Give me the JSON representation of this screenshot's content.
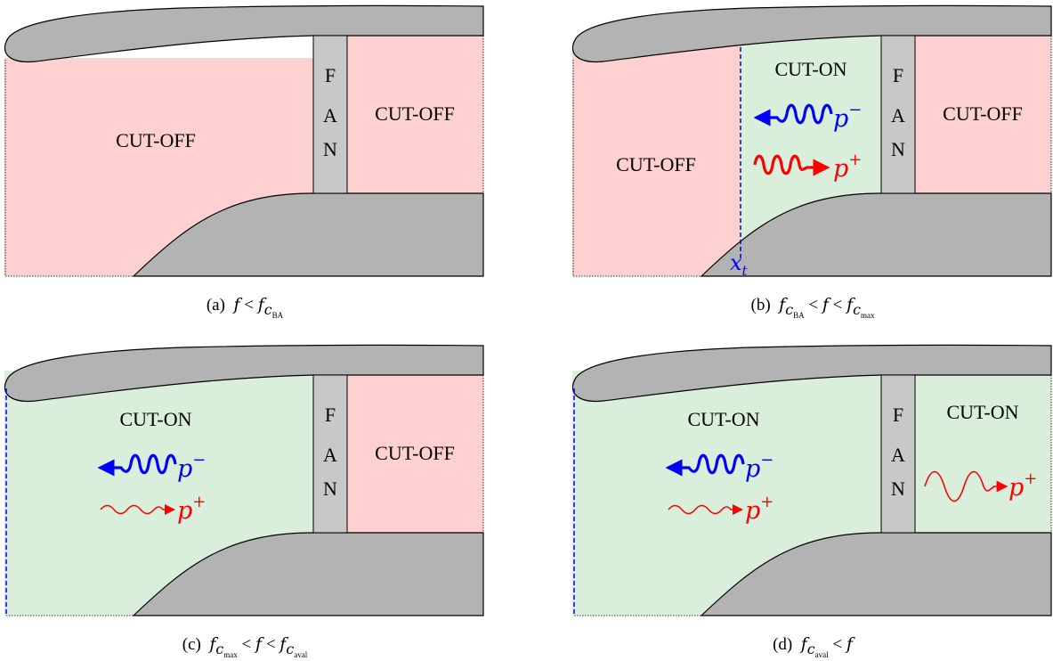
{
  "colors": {
    "cut_off": "#ffd0d0",
    "cut_on": "#d9eedb",
    "nacelle": "#b3b3b3",
    "fan": "#c8c8c8",
    "backward_wave": "#0000ff",
    "forward_wave": "#ff0000",
    "transition": "#0000ff"
  },
  "labels": {
    "cut_off": "CUT-OFF",
    "cut_on": "CUT-ON",
    "fan_letters": [
      "F",
      "A",
      "N"
    ],
    "p_minus": "p",
    "minus_sign": "−",
    "p_plus": "p",
    "plus_sign": "+",
    "xt_symbol": "x",
    "xt_subscript": "t"
  },
  "panels": [
    {
      "id": "a",
      "caption": {
        "prefix": "(a)",
        "parts": [
          {
            "var": "f",
            "op": "<"
          },
          {
            "var": "f",
            "sub": "c",
            "subsub": "BA"
          }
        ]
      },
      "inlet_state": "cut-off",
      "transition_marker": "none",
      "exhaust_state": "cut-off",
      "backward_wave": "none",
      "forward_wave": "none"
    },
    {
      "id": "b",
      "caption": {
        "prefix": "(b)",
        "parts": [
          {
            "var": "f",
            "sub": "c",
            "subsub": "BA",
            "op": "<"
          },
          {
            "var": "f",
            "op": "<"
          },
          {
            "var": "f",
            "sub": "c",
            "subsub": "max"
          }
        ]
      },
      "inlet_state": "partial: cut-off upstream, cut-on near fan",
      "transition_marker": "x_t",
      "exhaust_state": "cut-off",
      "backward_wave": "strong",
      "forward_wave": "strong"
    },
    {
      "id": "c",
      "caption": {
        "prefix": "(c)",
        "parts": [
          {
            "var": "f",
            "sub": "c",
            "subsub": "max",
            "op": "<"
          },
          {
            "var": "f",
            "op": "<"
          },
          {
            "var": "f",
            "sub": "c",
            "subsub": "aval"
          }
        ]
      },
      "inlet_state": "cut-on",
      "transition_marker": "inlet lip",
      "exhaust_state": "cut-off",
      "backward_wave": "strong",
      "forward_wave": "weak"
    },
    {
      "id": "d",
      "caption": {
        "prefix": "(d)",
        "parts": [
          {
            "var": "f",
            "sub": "c",
            "subsub": "aval",
            "op": "<"
          },
          {
            "var": "f"
          }
        ]
      },
      "inlet_state": "cut-on",
      "transition_marker": "inlet lip",
      "exhaust_state": "cut-on",
      "backward_wave": "strong",
      "forward_wave": "weak",
      "exhaust_wave": "forward"
    }
  ]
}
